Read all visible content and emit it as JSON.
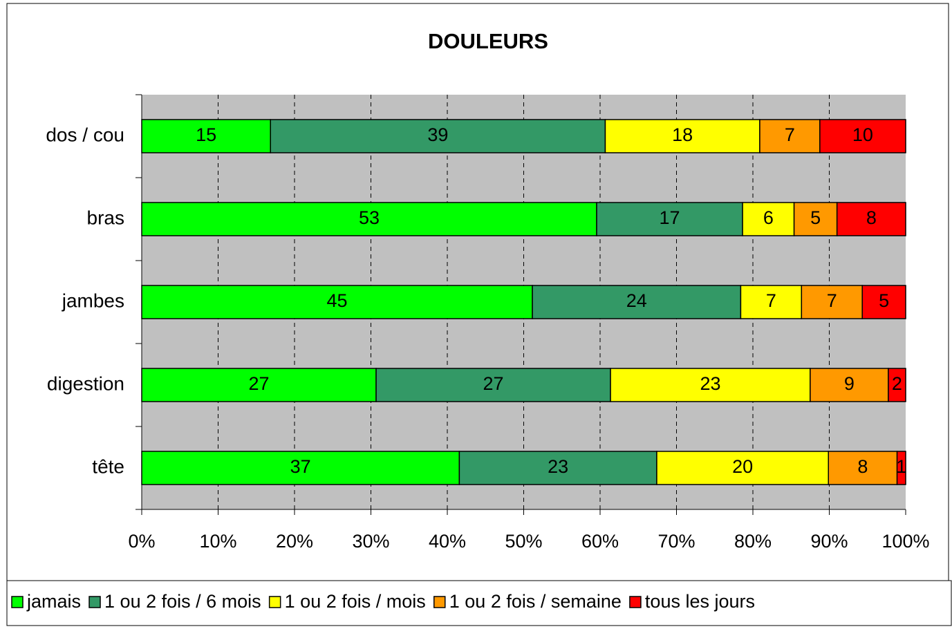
{
  "chart_data": {
    "type": "bar100h",
    "title": "DOULEURS",
    "categories": [
      "dos / cou",
      "bras",
      "jambes",
      "digestion",
      "tête"
    ],
    "series": [
      {
        "name": "jamais",
        "color": "#00ff00",
        "values": [
          15,
          53,
          45,
          27,
          37
        ]
      },
      {
        "name": "1 ou 2 fois / 6 mois",
        "color": "#339966",
        "values": [
          39,
          17,
          24,
          27,
          23
        ]
      },
      {
        "name": "1 ou 2 fois / mois",
        "color": "#ffff00",
        "values": [
          18,
          6,
          7,
          23,
          20
        ]
      },
      {
        "name": "1 ou 2 fois / semaine",
        "color": "#ff9900",
        "values": [
          7,
          5,
          7,
          9,
          8
        ]
      },
      {
        "name": "tous les jours",
        "color": "#ff0000",
        "values": [
          10,
          8,
          5,
          2,
          1
        ]
      }
    ],
    "xlim": [
      0,
      100
    ],
    "xticks": [
      {
        "value": 0,
        "label": "0%"
      },
      {
        "value": 10,
        "label": "10%"
      },
      {
        "value": 20,
        "label": "20%"
      },
      {
        "value": 30,
        "label": "30%"
      },
      {
        "value": 40,
        "label": "40%"
      },
      {
        "value": 50,
        "label": "50%"
      },
      {
        "value": 60,
        "label": "60%"
      },
      {
        "value": 70,
        "label": "70%"
      },
      {
        "value": 80,
        "label": "80%"
      },
      {
        "value": 90,
        "label": "90%"
      },
      {
        "value": 100,
        "label": "100%"
      }
    ],
    "grid": true,
    "legend": "bottom"
  }
}
